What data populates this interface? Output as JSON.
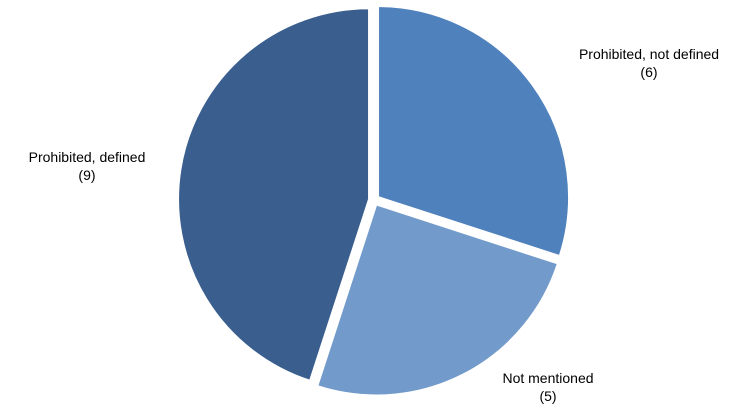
{
  "chart_data": {
    "type": "pie",
    "title": "",
    "start_angle_deg": 0,
    "direction": "clockwise",
    "exploded": true,
    "slices": [
      {
        "label": "Prohibited, not defined",
        "value": 6,
        "value_text": "(6)",
        "color": "#4f81bd"
      },
      {
        "label": "Not mentioned",
        "value": 5,
        "value_text": "(5)",
        "color": "#729aca"
      },
      {
        "label": "Prohibited, defined",
        "value": 9,
        "value_text": "(9)",
        "color": "#3a5f8f"
      }
    ]
  }
}
